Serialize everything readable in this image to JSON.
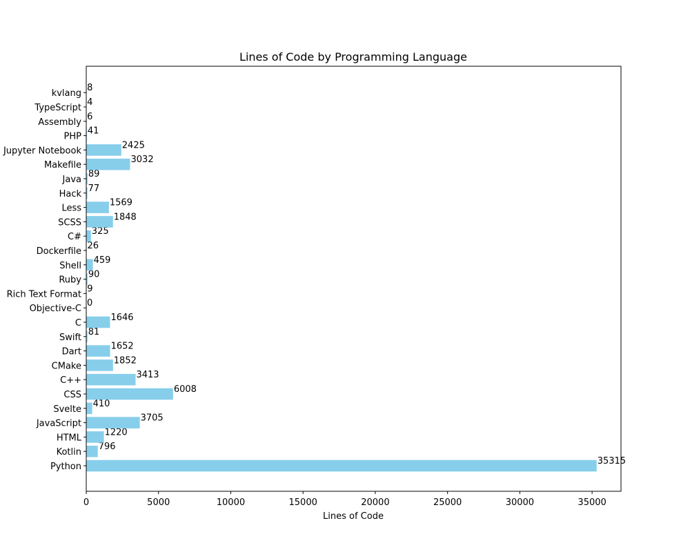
{
  "chart_data": {
    "type": "bar",
    "orientation": "horizontal",
    "title": "Lines of Code by Programming Language",
    "xlabel": "Lines of Code",
    "ylabel": "",
    "xlim": [
      0,
      37000
    ],
    "xticks": [
      0,
      5000,
      10000,
      15000,
      20000,
      25000,
      30000,
      35000
    ],
    "xtick_labels": [
      "0",
      "5000",
      "10000",
      "15000",
      "20000",
      "25000",
      "30000",
      "35000"
    ],
    "categories": [
      "Python",
      "Kotlin",
      "HTML",
      "JavaScript",
      "Svelte",
      "CSS",
      "C++",
      "CMake",
      "Dart",
      "Swift",
      "C",
      "Objective-C",
      "Rich Text Format",
      "Ruby",
      "Shell",
      "Dockerfile",
      "C#",
      "SCSS",
      "Less",
      "Hack",
      "Java",
      "Makefile",
      "Jupyter Notebook",
      "PHP",
      "Assembly",
      "TypeScript",
      "kvlang"
    ],
    "values": [
      35315,
      796,
      1220,
      3705,
      410,
      6008,
      3413,
      1852,
      1652,
      81,
      1646,
      0,
      9,
      90,
      459,
      26,
      325,
      1848,
      1569,
      77,
      89,
      3032,
      2425,
      41,
      6,
      4,
      8
    ],
    "value_labels": [
      "35315",
      "796",
      "1220",
      "3705",
      "410",
      "6008",
      "3413",
      "1852",
      "1652",
      "81",
      "1646",
      "0",
      "9",
      "90",
      "459",
      "26",
      "325",
      "1848",
      "1569",
      "77",
      "89",
      "3032",
      "2425",
      "41",
      "6",
      "4",
      "8"
    ],
    "bar_color": "#87ceeb",
    "grid": false,
    "legend": false
  }
}
